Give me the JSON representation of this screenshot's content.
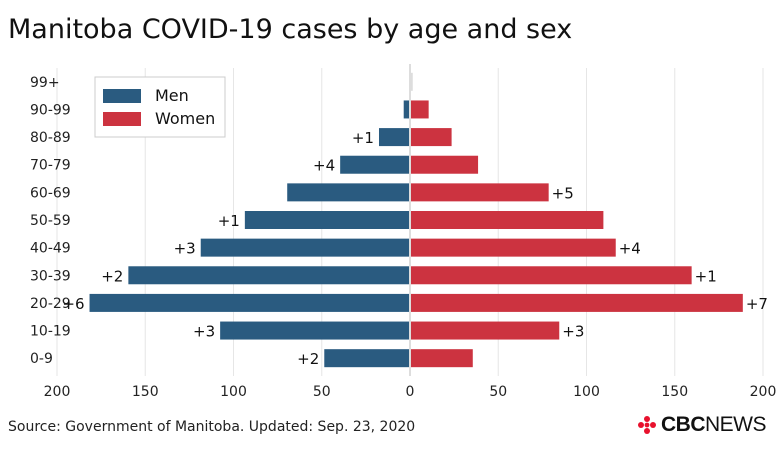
{
  "title": "Manitoba COVID-19 cases by age and sex",
  "source": "Source: Government of Manitoba. Updated: Sep. 23, 2020",
  "brand": {
    "name_bold": "CBC",
    "name_light": "NEWS",
    "logo_icon": "cbc-gem-icon",
    "logo_color": "#e8112d"
  },
  "chart_data": {
    "type": "bar",
    "orientation": "horizontal-diverging",
    "categories": [
      "0-9",
      "10-19",
      "20-29",
      "30-39",
      "40-49",
      "50-59",
      "60-69",
      "70-79",
      "80-89",
      "90-99",
      "99+"
    ],
    "series": [
      {
        "name": "Men",
        "color": "#2a5b80",
        "values": [
          48,
          107,
          181,
          159,
          118,
          93,
          69,
          39,
          17,
          3,
          0
        ],
        "changes": [
          "+2",
          "+3",
          "+6",
          "+2",
          "+3",
          "+1",
          "",
          "+4",
          "+1",
          "",
          ""
        ]
      },
      {
        "name": "Women",
        "color": "#cc3340",
        "values": [
          35,
          84,
          188,
          159,
          116,
          109,
          78,
          38,
          23,
          10,
          1
        ],
        "changes": [
          "",
          "+3",
          "+7",
          "+1",
          "+4",
          "",
          "+5",
          "",
          "",
          "",
          ""
        ]
      }
    ],
    "x_ticks": [
      "200",
      "150",
      "100",
      "50",
      "0",
      "50",
      "100",
      "150",
      "200"
    ],
    "xlim": [
      -200,
      200
    ],
    "grid": "vertical",
    "legend": "top-left"
  }
}
